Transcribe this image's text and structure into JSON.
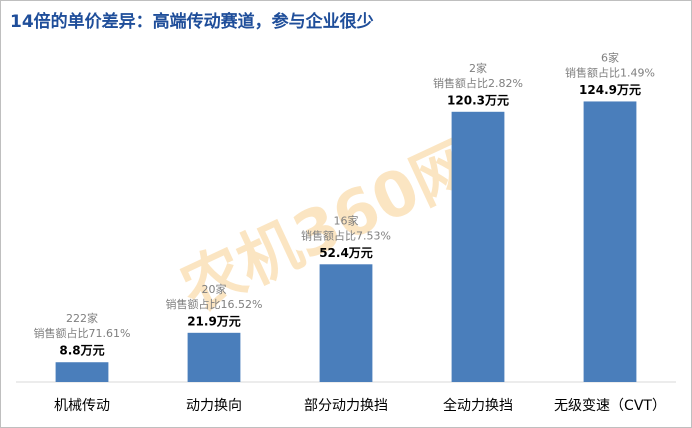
{
  "chart_data": {
    "type": "bar",
    "title": "14倍的单价差异：高端传动赛道，参与企业很少",
    "watermark": "农机360网",
    "categories": [
      "机械传动",
      "动力换向",
      "部分动力换挡",
      "全动力换挡",
      "无级变速（CVT）"
    ],
    "values": [
      8.8,
      21.9,
      52.4,
      120.3,
      124.9
    ],
    "value_labels": [
      "8.8万元",
      "21.9万元",
      "52.4万元",
      "120.3万元",
      "124.9万元"
    ],
    "company_counts": [
      "222家",
      "20家",
      "16家",
      "2家",
      "6家"
    ],
    "share_labels": [
      "销售额占比71.61%",
      "销售额占比16.52%",
      "销售额占比7.53%",
      "销售额占比2.82%",
      "销售额占比1.49%"
    ],
    "color": "#4a7ebb",
    "ylim": [
      0,
      130
    ]
  }
}
